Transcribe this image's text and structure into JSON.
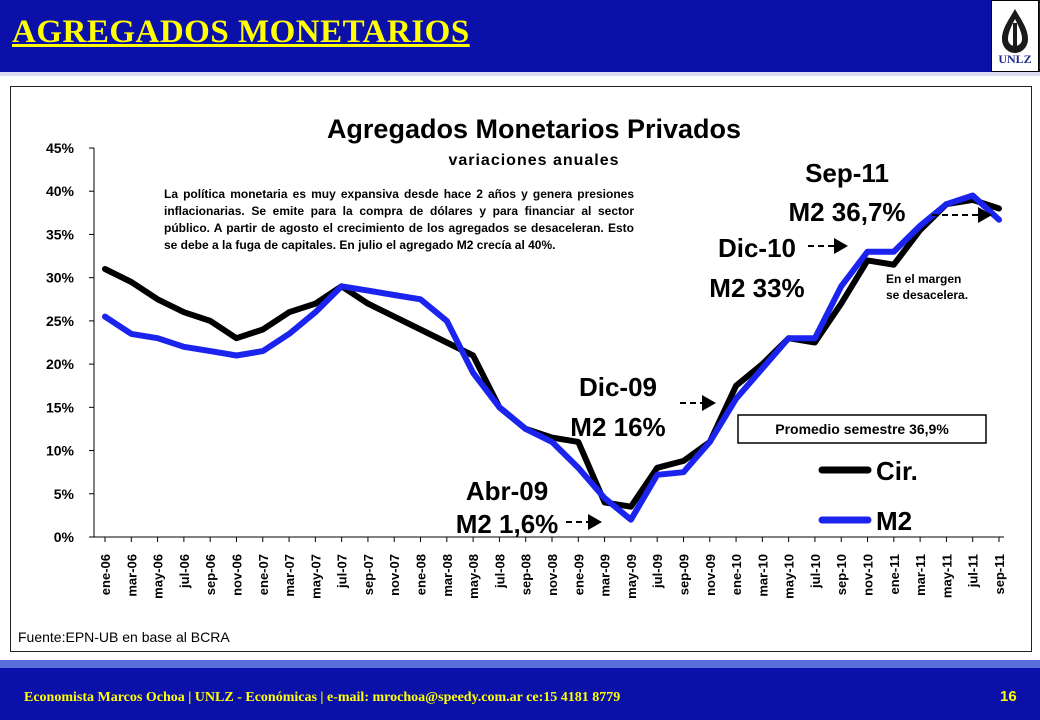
{
  "header": {
    "title": "AGREGADOS MONETARIOS",
    "logo_text": "UNLZ"
  },
  "footer": {
    "text": "Economista  Marcos Ochoa | UNLZ - Económicas | e-mail: mrochoa@speedy.com.ar  ce:15 4181 8779",
    "page_number": "16"
  },
  "note": "La política monetaria es muy expansiva desde hace 2 años y genera presiones inflacionarias. Se emite para la compra de dólares y para financiar al sector público. A partir de agosto el crecimiento de los agregados se desaceleran. Esto se debe a la fuga de capitales. En julio el agregado M2 crecía al 40%.",
  "colors": {
    "cir": "#000000",
    "m2": "#1a24ee",
    "header_bg": "#0a10a8",
    "title_color": "#ffff00"
  },
  "chart_data": {
    "type": "line",
    "title": "Agregados Monetarios Privados",
    "subtitle": "variaciones anuales",
    "source": "Fuente:EPN-UB en base al BCRA",
    "ylim": [
      0,
      45
    ],
    "yticks": [
      "0%",
      "5%",
      "10%",
      "15%",
      "20%",
      "25%",
      "30%",
      "35%",
      "40%",
      "45%"
    ],
    "categories": [
      "ene-06",
      "mar-06",
      "may-06",
      "jul-06",
      "sep-06",
      "nov-06",
      "ene-07",
      "mar-07",
      "may-07",
      "jul-07",
      "sep-07",
      "nov-07",
      "ene-08",
      "mar-08",
      "may-08",
      "jul-08",
      "sep-08",
      "nov-08",
      "ene-09",
      "mar-09",
      "may-09",
      "jul-09",
      "sep-09",
      "nov-09",
      "ene-10",
      "mar-10",
      "may-10",
      "jul-10",
      "sep-10",
      "nov-10",
      "ene-11",
      "mar-11",
      "may-11",
      "jul-11",
      "sep-11"
    ],
    "grid": false,
    "legend_position": "bottom-right",
    "series": [
      {
        "name": "Cir.",
        "values": [
          31.0,
          29.5,
          27.5,
          26.0,
          25.0,
          23.0,
          24.0,
          26.0,
          27.0,
          29.0,
          27.0,
          25.5,
          24.0,
          22.5,
          21.0,
          15.0,
          12.5,
          11.5,
          11.0,
          4.0,
          3.5,
          8.0,
          8.8,
          11.0,
          17.5,
          20.0,
          23.0,
          22.5,
          27.0,
          32.0,
          31.5,
          35.5,
          38.5,
          39.0,
          38.0
        ]
      },
      {
        "name": "M2",
        "values": [
          25.5,
          23.5,
          23.0,
          22.0,
          21.5,
          21.0,
          21.5,
          23.5,
          26.0,
          29.0,
          28.5,
          28.0,
          27.5,
          25.0,
          19.0,
          15.0,
          12.5,
          11.0,
          8.0,
          4.5,
          2.0,
          7.2,
          7.5,
          11.0,
          16.0,
          19.5,
          23.0,
          23.0,
          29.0,
          33.0,
          33.0,
          36.0,
          38.5,
          39.5,
          36.7
        ]
      }
    ],
    "annotations": [
      {
        "line1": "Abr-09",
        "line2": "M2 1,6%"
      },
      {
        "line1": "Dic-09",
        "line2": "M2 16%"
      },
      {
        "line1": "Dic-10",
        "line2": "M2 33%"
      },
      {
        "line1": "Sep-11",
        "line2": "M2 36,7%"
      }
    ],
    "side_note_lines": [
      "En el margen",
      "se desacelera."
    ],
    "average_box": "Promedio semestre 36,9%"
  }
}
